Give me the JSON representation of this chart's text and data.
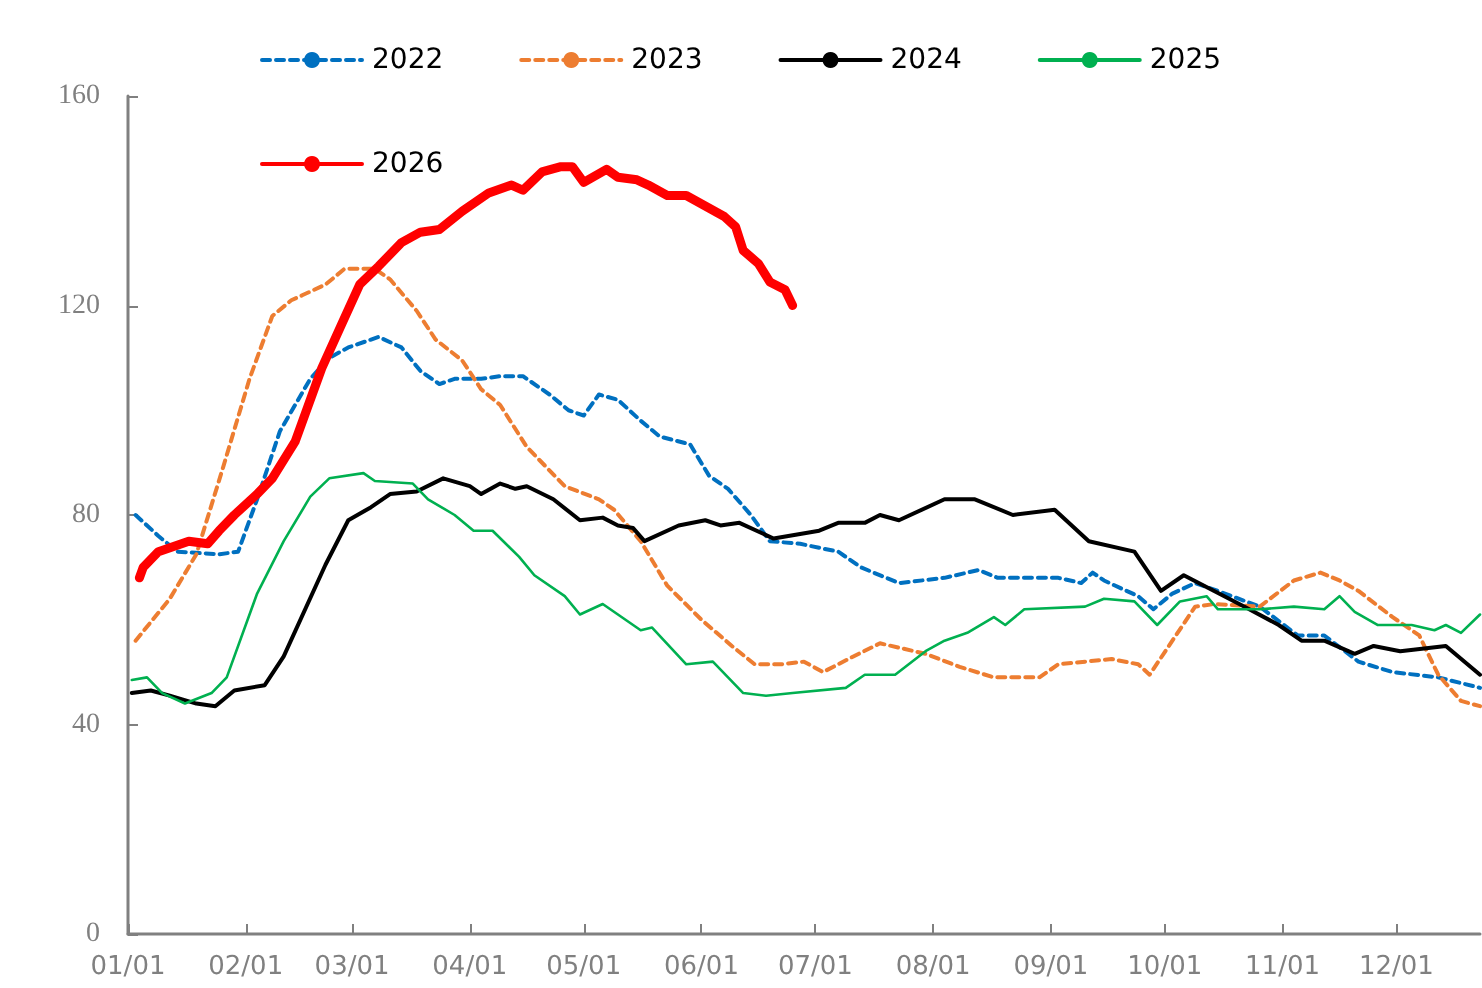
{
  "chart_data": {
    "type": "line",
    "xlim": [
      "--01-01",
      "--12-23"
    ],
    "ylim": [
      0,
      160
    ],
    "yticks": [
      0,
      40,
      80,
      120,
      160
    ],
    "xticks": [
      {
        "value": "--01-01",
        "label": "01/01"
      },
      {
        "value": "--02-01",
        "label": "02/01"
      },
      {
        "value": "--03-01",
        "label": "03/01"
      },
      {
        "value": "--04-01",
        "label": "04/01"
      },
      {
        "value": "--05-01",
        "label": "05/01"
      },
      {
        "value": "--06-01",
        "label": "06/01"
      },
      {
        "value": "--07-01",
        "label": "07/01"
      },
      {
        "value": "--08-01",
        "label": "08/01"
      },
      {
        "value": "--09-01",
        "label": "09/01"
      },
      {
        "value": "--10-01",
        "label": "10/01"
      },
      {
        "value": "--11-01",
        "label": "11/01"
      },
      {
        "value": "--12-01",
        "label": "12/01"
      }
    ],
    "grid": false,
    "legend": "top",
    "marker": "none",
    "series": [
      {
        "name": "2022",
        "color": "#0070c0",
        "line_style": "dashed",
        "x": [
          "--01-03",
          "--01-09",
          "--01-14",
          "--01-25",
          "--01-30",
          "--02-04",
          "--02-10",
          "--02-18",
          "--02-23",
          "--02-28",
          "--03-08",
          "--03-14",
          "--03-19",
          "--03-24",
          "--03-28",
          "--04-04",
          "--04-09",
          "--04-15",
          "--04-22",
          "--04-27",
          "--05-01",
          "--05-05",
          "--05-10",
          "--05-16",
          "--05-21",
          "--05-29",
          "--06-03",
          "--06-08",
          "--06-14",
          "--06-19",
          "--06-27",
          "--07-07",
          "--07-13",
          "--07-23",
          "--08-04",
          "--08-13",
          "--08-18",
          "--09-03",
          "--09-09",
          "--09-12",
          "--09-15",
          "--09-24",
          "--09-28",
          "--10-03",
          "--10-09",
          "--10-15",
          "--10-26",
          "--11-05",
          "--11-12",
          "--11-21",
          "--11-30",
          "--12-12",
          "--12-23"
        ],
        "values": [
          80,
          76,
          73,
          72.5,
          73,
          83,
          96,
          106,
          110,
          112,
          114,
          112,
          107.5,
          105,
          106,
          106,
          106.5,
          106.5,
          103,
          100,
          99,
          103,
          102,
          98,
          95,
          93.5,
          87.5,
          85,
          80,
          75,
          74.5,
          73,
          70,
          67,
          68,
          69.5,
          68,
          68,
          67,
          69,
          67.5,
          64.5,
          62,
          65,
          67,
          65.5,
          62.5,
          57,
          57,
          52,
          50,
          49,
          47
        ]
      },
      {
        "name": "2023",
        "color": "#ed7d31",
        "line_style": "dashed",
        "x": [
          "--01-03",
          "--01-12",
          "--01-19",
          "--01-26",
          "--02-02",
          "--02-08",
          "--02-13",
          "--02-16",
          "--02-22",
          "--02-27",
          "--03-07",
          "--03-11",
          "--03-18",
          "--03-23",
          "--03-30",
          "--04-04",
          "--04-09",
          "--04-16",
          "--04-26",
          "--05-05",
          "--05-09",
          "--05-16",
          "--05-23",
          "--06-01",
          "--06-09",
          "--06-15",
          "--06-22",
          "--06-28",
          "--07-03",
          "--07-11",
          "--07-18",
          "--07-30",
          "--08-08",
          "--08-17",
          "--08-29",
          "--09-03",
          "--09-17",
          "--09-24",
          "--09-27",
          "--10-03",
          "--10-09",
          "--10-14",
          "--10-26",
          "--11-04",
          "--11-11",
          "--11-16",
          "--11-21",
          "--11-30",
          "--12-07",
          "--12-12",
          "--12-18",
          "--12-23"
        ],
        "values": [
          56,
          64,
          72.5,
          89,
          106,
          118,
          121,
          122,
          124,
          127,
          127,
          125,
          119,
          113.5,
          109.5,
          104,
          101,
          93,
          85.5,
          83,
          81,
          75,
          66.5,
          60,
          55,
          51.5,
          51.5,
          52,
          50,
          53,
          55.5,
          53.5,
          51,
          49,
          49,
          51.5,
          52.5,
          51.5,
          49.5,
          56,
          62.5,
          63,
          62.5,
          67.5,
          69,
          67.5,
          65.5,
          60.5,
          57,
          49.5,
          44.5,
          43.5
        ]
      },
      {
        "name": "2024",
        "color": "#000000",
        "line_style": "solid",
        "x": [
          "--01-02",
          "--01-07",
          "--01-12",
          "--01-19",
          "--01-24",
          "--01-29",
          "--02-06",
          "--02-11",
          "--02-22",
          "--02-28",
          "--03-06",
          "--03-11",
          "--03-18",
          "--03-25",
          "--04-01",
          "--04-04",
          "--04-09",
          "--04-13",
          "--04-16",
          "--04-23",
          "--04-30",
          "--05-06",
          "--05-10",
          "--05-14",
          "--05-17",
          "--05-26",
          "--06-02",
          "--06-06",
          "--06-11",
          "--06-20",
          "--07-02",
          "--07-07",
          "--07-14",
          "--07-18",
          "--07-23",
          "--08-04",
          "--08-12",
          "--08-22",
          "--09-02",
          "--09-11",
          "--09-23",
          "--09-30",
          "--10-06",
          "--10-14",
          "--10-22",
          "--10-31",
          "--11-06",
          "--11-12",
          "--11-20",
          "--11-25",
          "--12-02",
          "--12-14",
          "--12-23"
        ],
        "values": [
          46,
          46.5,
          45.5,
          44,
          43.5,
          46.5,
          47.5,
          53,
          70.5,
          79,
          81.5,
          84,
          84.5,
          87,
          85.5,
          84,
          86,
          85,
          85.5,
          83,
          79,
          79.5,
          78,
          77.5,
          75,
          78,
          79,
          78,
          78.5,
          75.5,
          77,
          78.5,
          78.5,
          80,
          79,
          83,
          83,
          80,
          81,
          75,
          73,
          65.5,
          68.5,
          65.5,
          62.5,
          59,
          56,
          56,
          53.5,
          55,
          54,
          55,
          49.5
        ]
      },
      {
        "name": "2025",
        "color": "#00b050",
        "line_style": "solid",
        "x": [
          "--01-02",
          "--01-06",
          "--01-10",
          "--01-16",
          "--01-23",
          "--01-27",
          "--02-04",
          "--02-11",
          "--02-18",
          "--02-23",
          "--03-04",
          "--03-07",
          "--03-17",
          "--03-21",
          "--03-28",
          "--04-02",
          "--04-07",
          "--04-14",
          "--04-18",
          "--04-26",
          "--04-30",
          "--05-06",
          "--05-16",
          "--05-19",
          "--05-28",
          "--06-04",
          "--06-12",
          "--06-18",
          "--06-25",
          "--07-09",
          "--07-14",
          "--07-22",
          "--07-30",
          "--08-04",
          "--08-10",
          "--08-17",
          "--08-20",
          "--08-25",
          "--09-10",
          "--09-15",
          "--09-23",
          "--09-29",
          "--10-05",
          "--10-12",
          "--10-15",
          "--10-26",
          "--11-04",
          "--11-12",
          "--11-16",
          "--11-20",
          "--11-26",
          "--12-05",
          "--12-11",
          "--12-14",
          "--12-18",
          "--12-23"
        ],
        "values": [
          48.5,
          49,
          46,
          44,
          46,
          49,
          65,
          75,
          83.5,
          87,
          88,
          86.5,
          86,
          83,
          80,
          77,
          77,
          72,
          68.5,
          64.5,
          61,
          63,
          58,
          58.5,
          51.5,
          52,
          46,
          45.5,
          46,
          47,
          49.5,
          49.5,
          54,
          56,
          57.5,
          60.5,
          59,
          62,
          62.5,
          64,
          63.5,
          59,
          63.5,
          64.5,
          62,
          62,
          62.5,
          62,
          64.5,
          61.5,
          59,
          59,
          58,
          59,
          57.5,
          61
        ]
      },
      {
        "name": "2026",
        "color": "#ff0000",
        "line_style": "solid",
        "x": [
          "--01-04",
          "--01-05",
          "--01-09",
          "--01-17",
          "--01-22",
          "--01-25",
          "--01-29",
          "--02-04",
          "--02-08",
          "--02-14",
          "--02-21",
          "--02-26",
          "--03-03",
          "--03-08",
          "--03-14",
          "--03-19",
          "--03-24",
          "--03-30",
          "--04-06",
          "--04-12",
          "--04-15",
          "--04-20",
          "--04-25",
          "--04-28",
          "--05-01",
          "--05-07",
          "--05-10",
          "--05-15",
          "--05-18",
          "--05-23",
          "--05-28",
          "--06-02",
          "--06-07",
          "--06-10",
          "--06-12",
          "--06-16",
          "--06-19",
          "--06-23",
          "--06-25"
        ],
        "values": [
          68,
          70,
          73,
          75,
          74.5,
          77,
          80,
          84,
          87,
          94,
          108,
          116,
          124,
          127.5,
          132,
          134,
          134.5,
          138,
          141.5,
          143,
          142,
          145.5,
          146.5,
          146.5,
          143.5,
          146,
          144.5,
          144,
          143,
          141,
          141,
          139,
          137,
          135,
          130.5,
          128,
          124.5,
          123,
          120
        ]
      }
    ]
  }
}
